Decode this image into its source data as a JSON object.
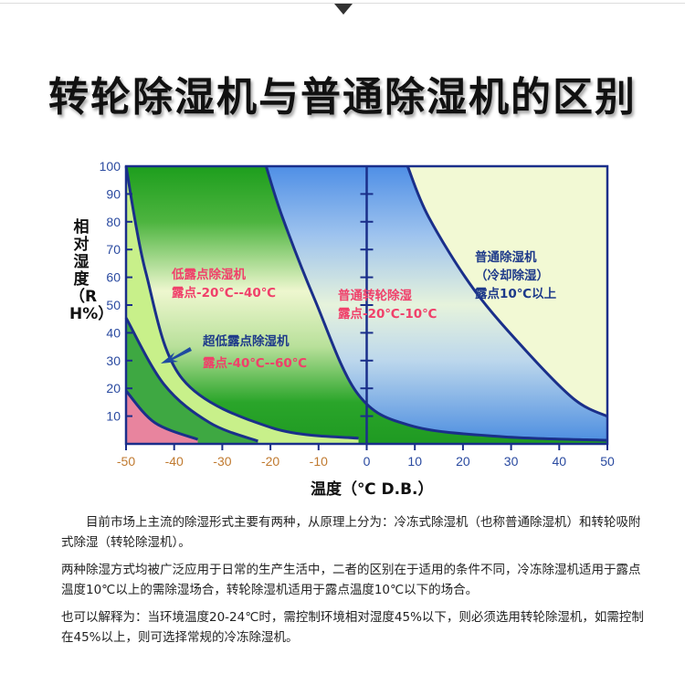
{
  "title": "转轮除湿机与普通除湿机的区别",
  "chart_data": {
    "type": "area",
    "xlabel": "温度（℃ D.B.）",
    "ylabel": "相对湿度（RH%）",
    "xlim": [
      -50,
      50
    ],
    "ylim": [
      0,
      100
    ],
    "x_ticks": [
      -50,
      -40,
      -30,
      -20,
      -10,
      0,
      10,
      20,
      30,
      40,
      50
    ],
    "y_ticks": [
      10,
      20,
      30,
      40,
      50,
      60,
      70,
      80,
      90,
      100
    ],
    "grid": false,
    "colors": {
      "normal_region": "#f2f9d4",
      "rotary_region": "#5b9be8",
      "low_dewpoint_region": "#22a022",
      "ultra_low_region": "#c8f08a",
      "ultra_low_band": "#3ea842",
      "lowest_region": "#e8849e",
      "curve": "#1a2f8a",
      "negative_tick": "#c07a30",
      "positive_tick": "#2a4aa0"
    },
    "curves": [
      {
        "id": "normal_boundary",
        "points": [
          [
            8.5,
            100
          ],
          [
            12.9,
            81.6
          ],
          [
            22.4,
            55.3
          ],
          [
            33.8,
            32.2
          ],
          [
            43.3,
            15.8
          ],
          [
            50,
            9.9
          ]
        ]
      },
      {
        "id": "rotary_boundary",
        "points": [
          [
            -20.9,
            100
          ],
          [
            -17.5,
            81.6
          ],
          [
            -10.8,
            52
          ],
          [
            -1.9,
            18.1
          ],
          [
            9.1,
            6.6
          ],
          [
            28.1,
            2.6
          ],
          [
            50,
            1.3
          ]
        ]
      },
      {
        "id": "low_dewpoint_boundary",
        "points": [
          [
            -50,
            100
          ],
          [
            -45.9,
            61.8
          ],
          [
            -38.3,
            23.4
          ],
          [
            -19.9,
            5.9
          ],
          [
            -1.7,
            2
          ]
        ]
      },
      {
        "id": "ultra_low_boundary",
        "points": [
          [
            -50,
            45.4
          ],
          [
            -42.1,
            21.4
          ],
          [
            -32.6,
            7.6
          ],
          [
            -22.6,
            1
          ]
        ]
      },
      {
        "id": "lowest_boundary",
        "points": [
          [
            -50,
            19.1
          ],
          [
            -44,
            7.6
          ],
          [
            -35.1,
            1.6
          ]
        ]
      }
    ],
    "annotations": [
      {
        "lines": [
          "低露点除湿机",
          "露点-20℃--40℃"
        ],
        "color": "red"
      },
      {
        "lines": [
          "超低露点除湿机",
          "露点-40℃--60℃"
        ],
        "color": "mixed"
      },
      {
        "lines": [
          "普通转轮除湿",
          "露点-20℃-10℃"
        ],
        "color": "red"
      },
      {
        "lines": [
          "普通除湿机",
          "（冷却除湿）",
          "露点10℃以上"
        ],
        "color": "blue"
      }
    ]
  },
  "paragraphs": [
    "目前市场上主流的除湿形式主要有两种，从原理上分为：冷冻式除湿机（也称普通除湿机）和转轮吸附式除湿（转轮除湿机）。",
    "两种除湿方式均被广泛应用于日常的生产生活中，二者的区别在于适用的条件不同，冷冻除湿机适用于露点温度10℃以上的需除湿场合，转轮除湿机适用于露点温度10℃以下的场合。",
    "也可以解释为：当环境温度20-24℃时，需控制环境相对湿度45%以下，则必须选用转轮除湿机，如需控制在45%以上，则可选择常规的冷冻除湿机。"
  ]
}
